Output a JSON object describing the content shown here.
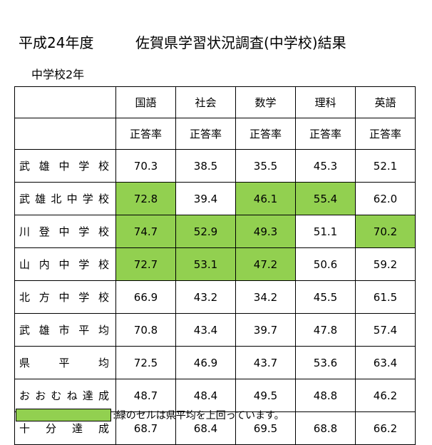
{
  "header": {
    "year": "平成24年度",
    "title": "佐賀県学習状況調査(中学校)結果",
    "grade": "中学校2年"
  },
  "table": {
    "subjects": [
      "国語",
      "社会",
      "数学",
      "理科",
      "英語"
    ],
    "rate_label": "正答率",
    "rows": [
      {
        "name": "武雄中学校",
        "values": [
          "70.3",
          "38.5",
          "35.5",
          "45.3",
          "52.1"
        ],
        "highlight": [
          false,
          false,
          false,
          false,
          false
        ]
      },
      {
        "name": "武雄北中学校",
        "values": [
          "72.8",
          "39.4",
          "46.1",
          "55.4",
          "62.0"
        ],
        "highlight": [
          true,
          false,
          true,
          true,
          false
        ]
      },
      {
        "name": "川登中学校",
        "values": [
          "74.7",
          "52.9",
          "49.3",
          "51.1",
          "70.2"
        ],
        "highlight": [
          true,
          true,
          true,
          false,
          true
        ]
      },
      {
        "name": "山内中学校",
        "values": [
          "72.7",
          "53.1",
          "47.2",
          "50.6",
          "59.2"
        ],
        "highlight": [
          true,
          true,
          true,
          false,
          false
        ]
      },
      {
        "name": "北方中学校",
        "values": [
          "66.9",
          "43.2",
          "34.2",
          "45.5",
          "61.5"
        ],
        "highlight": [
          false,
          false,
          false,
          false,
          false
        ]
      },
      {
        "name": "武雄市平均",
        "values": [
          "70.8",
          "43.4",
          "39.7",
          "47.8",
          "57.4"
        ],
        "highlight": [
          false,
          false,
          false,
          false,
          false
        ]
      },
      {
        "name": "県平均",
        "values": [
          "72.5",
          "46.9",
          "43.7",
          "53.6",
          "63.4"
        ],
        "highlight": [
          false,
          false,
          false,
          false,
          false
        ]
      },
      {
        "name": "おおむね達成",
        "values": [
          "48.7",
          "48.4",
          "49.5",
          "48.8",
          "46.2"
        ],
        "highlight": [
          false,
          false,
          false,
          false,
          false
        ]
      },
      {
        "name": "十分達成",
        "values": [
          "68.7",
          "68.4",
          "69.5",
          "68.8",
          "66.2"
        ],
        "highlight": [
          false,
          false,
          false,
          false,
          false
        ]
      }
    ]
  },
  "legend": {
    "text": ":緑のセルは県平均を上回っています。",
    "color": "#92d050"
  }
}
